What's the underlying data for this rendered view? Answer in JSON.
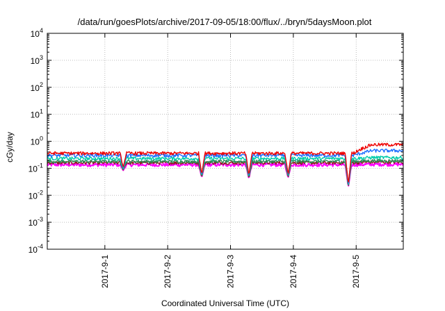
{
  "chart_data": {
    "type": "line",
    "title": "/data/run/goesPlots/archive/2017-09-05/18:00/flux/../bryn/5daysMoon.plot",
    "xlabel": "Coordinated Universal Time (UTC)",
    "ylabel": "cGy/day",
    "yscale": "log",
    "ylim_exponents": [
      -4,
      4
    ],
    "y_tick_base": "10",
    "y_tick_exponents": [
      "-4",
      "-3",
      "-2",
      "-1",
      "0",
      "1",
      "2",
      "3",
      "4"
    ],
    "xlim": [
      "2017-08-31 02:00",
      "2017-09-05 18:00"
    ],
    "x_ticks": [
      "2017-9-1",
      "2017-9-2",
      "2017-9-3",
      "2017-9-4",
      "2017-9-5"
    ],
    "grid": true,
    "series": [
      {
        "color": "#ff00ff",
        "base": 0.135,
        "after": 0.14
      },
      {
        "color": "#8b1a1a",
        "base": 0.16,
        "after": 0.17
      },
      {
        "color": "#2e8b57",
        "base": 0.18,
        "after": 0.19
      },
      {
        "color": "#00ccaa",
        "base": 0.23,
        "after": 0.25
      },
      {
        "color": "#1e6fff",
        "base": 0.3,
        "after": 0.45
      },
      {
        "color": "#ee0000",
        "base": 0.36,
        "after": 0.75
      }
    ],
    "dips": [
      {
        "date": "2017-09-01 07:00",
        "value": 0.11
      },
      {
        "date": "2017-09-02 13:00",
        "value": 0.06
      },
      {
        "date": "2017-09-03 07:00",
        "value": 0.055
      },
      {
        "date": "2017-09-03 22:00",
        "value": 0.06
      },
      {
        "date": "2017-09-04 21:00",
        "value": 0.026
      }
    ]
  }
}
